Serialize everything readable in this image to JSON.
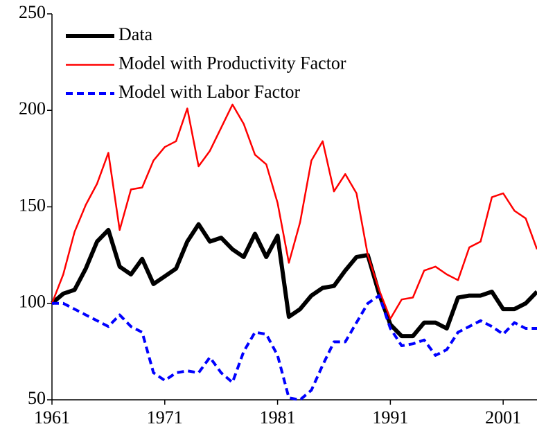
{
  "chart_data": {
    "type": "line",
    "x": [
      1961,
      1962,
      1963,
      1964,
      1965,
      1966,
      1967,
      1968,
      1969,
      1970,
      1971,
      1972,
      1973,
      1974,
      1975,
      1976,
      1977,
      1978,
      1979,
      1980,
      1981,
      1982,
      1983,
      1984,
      1985,
      1986,
      1987,
      1988,
      1989,
      1990,
      1991,
      1992,
      1993,
      1994,
      1995,
      1996,
      1997,
      1998,
      1999,
      2000,
      2001,
      2002,
      2003,
      2004
    ],
    "series": [
      {
        "name": "Data",
        "color": "#000000",
        "linestyle": "solid",
        "values": [
          100,
          105,
          107,
          118,
          132,
          138,
          119,
          115,
          123,
          110,
          114,
          118,
          132,
          141,
          132,
          134,
          128,
          124,
          136,
          124,
          135,
          93,
          97,
          104,
          108,
          109,
          117,
          124,
          125,
          105,
          89,
          83,
          83,
          90,
          90,
          87,
          103,
          104,
          104,
          106,
          97,
          97,
          100,
          106
        ]
      },
      {
        "name": "Model with Productivity Factor",
        "color": "#ff0000",
        "linestyle": "solid",
        "values": [
          100,
          115,
          137,
          151,
          162,
          178,
          138,
          159,
          160,
          174,
          181,
          184,
          201,
          171,
          179,
          191,
          203,
          193,
          177,
          172,
          152,
          121,
          142,
          174,
          184,
          158,
          167,
          157,
          125,
          107,
          92,
          102,
          103,
          117,
          119,
          115,
          112,
          129,
          132,
          155,
          157,
          148,
          144,
          128
        ]
      },
      {
        "name": "Model with Labor Factor",
        "color": "#0000ff",
        "linestyle": "dashed",
        "values": [
          100,
          100,
          97,
          94,
          91,
          88,
          94,
          88,
          85,
          64,
          60,
          64,
          65,
          64,
          72,
          64,
          59,
          75,
          85,
          84,
          73,
          51,
          50,
          55,
          68,
          80,
          80,
          90,
          100,
          104,
          87,
          78,
          79,
          81,
          73,
          76,
          85,
          88,
          91,
          88,
          84,
          90,
          87,
          87
        ]
      }
    ],
    "xlim": [
      1961,
      2004
    ],
    "xticks": [
      1961,
      1971,
      1981,
      1991,
      2001
    ],
    "ylim": [
      50,
      250
    ],
    "yticks": [
      50,
      100,
      150,
      200,
      250
    ],
    "legend": "upper left"
  }
}
